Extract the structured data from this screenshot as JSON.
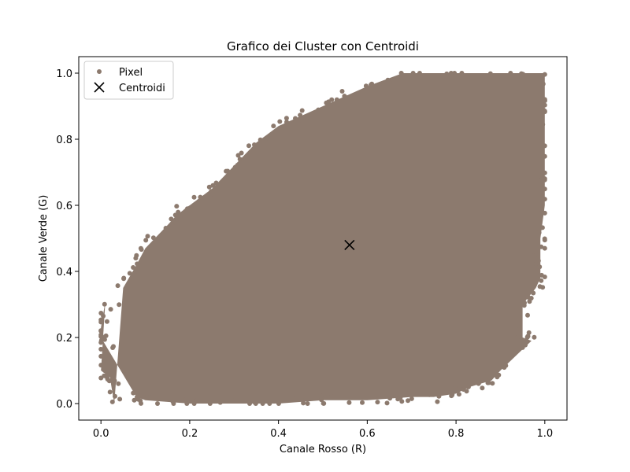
{
  "chart_data": {
    "type": "scatter",
    "title": "Grafico dei Cluster con Centroidi",
    "xlabel": "Canale Rosso (R)",
    "ylabel": "Canale Verde (G)",
    "xlim": [
      -0.05,
      1.05
    ],
    "ylim": [
      -0.05,
      1.05
    ],
    "xticks": [
      0.0,
      0.2,
      0.4,
      0.6,
      0.8,
      1.0
    ],
    "xtick_labels": [
      "0.0",
      "0.2",
      "0.4",
      "0.6",
      "0.8",
      "1.0"
    ],
    "yticks": [
      0.0,
      0.2,
      0.4,
      0.6,
      0.8,
      1.0
    ],
    "ytick_labels": [
      "0.0",
      "0.2",
      "0.4",
      "0.6",
      "0.8",
      "1.0"
    ],
    "grid": false,
    "legend": {
      "position": "top-left",
      "entries": [
        {
          "label": "Pixel",
          "marker": "dot",
          "color": "#8c7a6e"
        },
        {
          "label": "Centroidi",
          "marker": "x",
          "color": "#000000"
        }
      ]
    },
    "series": [
      {
        "name": "Pixel",
        "color": "#8c7a6e",
        "description_region": "dense cloud",
        "points": [
          [
            0.0,
            0.2
          ],
          [
            0.0,
            0.23
          ],
          [
            0.01,
            0.31
          ],
          [
            0.0,
            0.1
          ],
          [
            0.02,
            0.08
          ],
          [
            0.03,
            0.0
          ],
          [
            0.05,
            0.35
          ],
          [
            0.08,
            0.42
          ],
          [
            0.1,
            0.47
          ],
          [
            0.15,
            0.54
          ],
          [
            0.17,
            0.57
          ],
          [
            0.2,
            0.6
          ],
          [
            0.25,
            0.65
          ],
          [
            0.3,
            0.72
          ],
          [
            0.35,
            0.79
          ],
          [
            0.4,
            0.84
          ],
          [
            0.45,
            0.87
          ],
          [
            0.5,
            0.9
          ],
          [
            0.55,
            0.93
          ],
          [
            0.6,
            0.96
          ],
          [
            0.68,
            1.0
          ],
          [
            0.75,
            1.0
          ],
          [
            0.85,
            1.0
          ],
          [
            1.0,
            1.0
          ],
          [
            1.0,
            0.9
          ],
          [
            1.0,
            0.8
          ],
          [
            1.0,
            0.7
          ],
          [
            1.0,
            0.6
          ],
          [
            0.99,
            0.5
          ],
          [
            0.99,
            0.45
          ],
          [
            0.99,
            0.38
          ],
          [
            0.98,
            0.35
          ],
          [
            0.95,
            0.3
          ],
          [
            0.95,
            0.2
          ],
          [
            0.97,
            0.19
          ],
          [
            0.9,
            0.1
          ],
          [
            0.88,
            0.07
          ],
          [
            0.83,
            0.05
          ],
          [
            0.8,
            0.03
          ],
          [
            0.75,
            0.02
          ],
          [
            0.7,
            0.02
          ],
          [
            0.6,
            0.01
          ],
          [
            0.5,
            0.01
          ],
          [
            0.4,
            0.0
          ],
          [
            0.3,
            0.0
          ],
          [
            0.2,
            0.0
          ],
          [
            0.1,
            0.01
          ],
          [
            0.08,
            0.02
          ]
        ]
      },
      {
        "name": "Centroidi",
        "color": "#000000",
        "points": [
          [
            0.56,
            0.48
          ]
        ]
      }
    ]
  }
}
